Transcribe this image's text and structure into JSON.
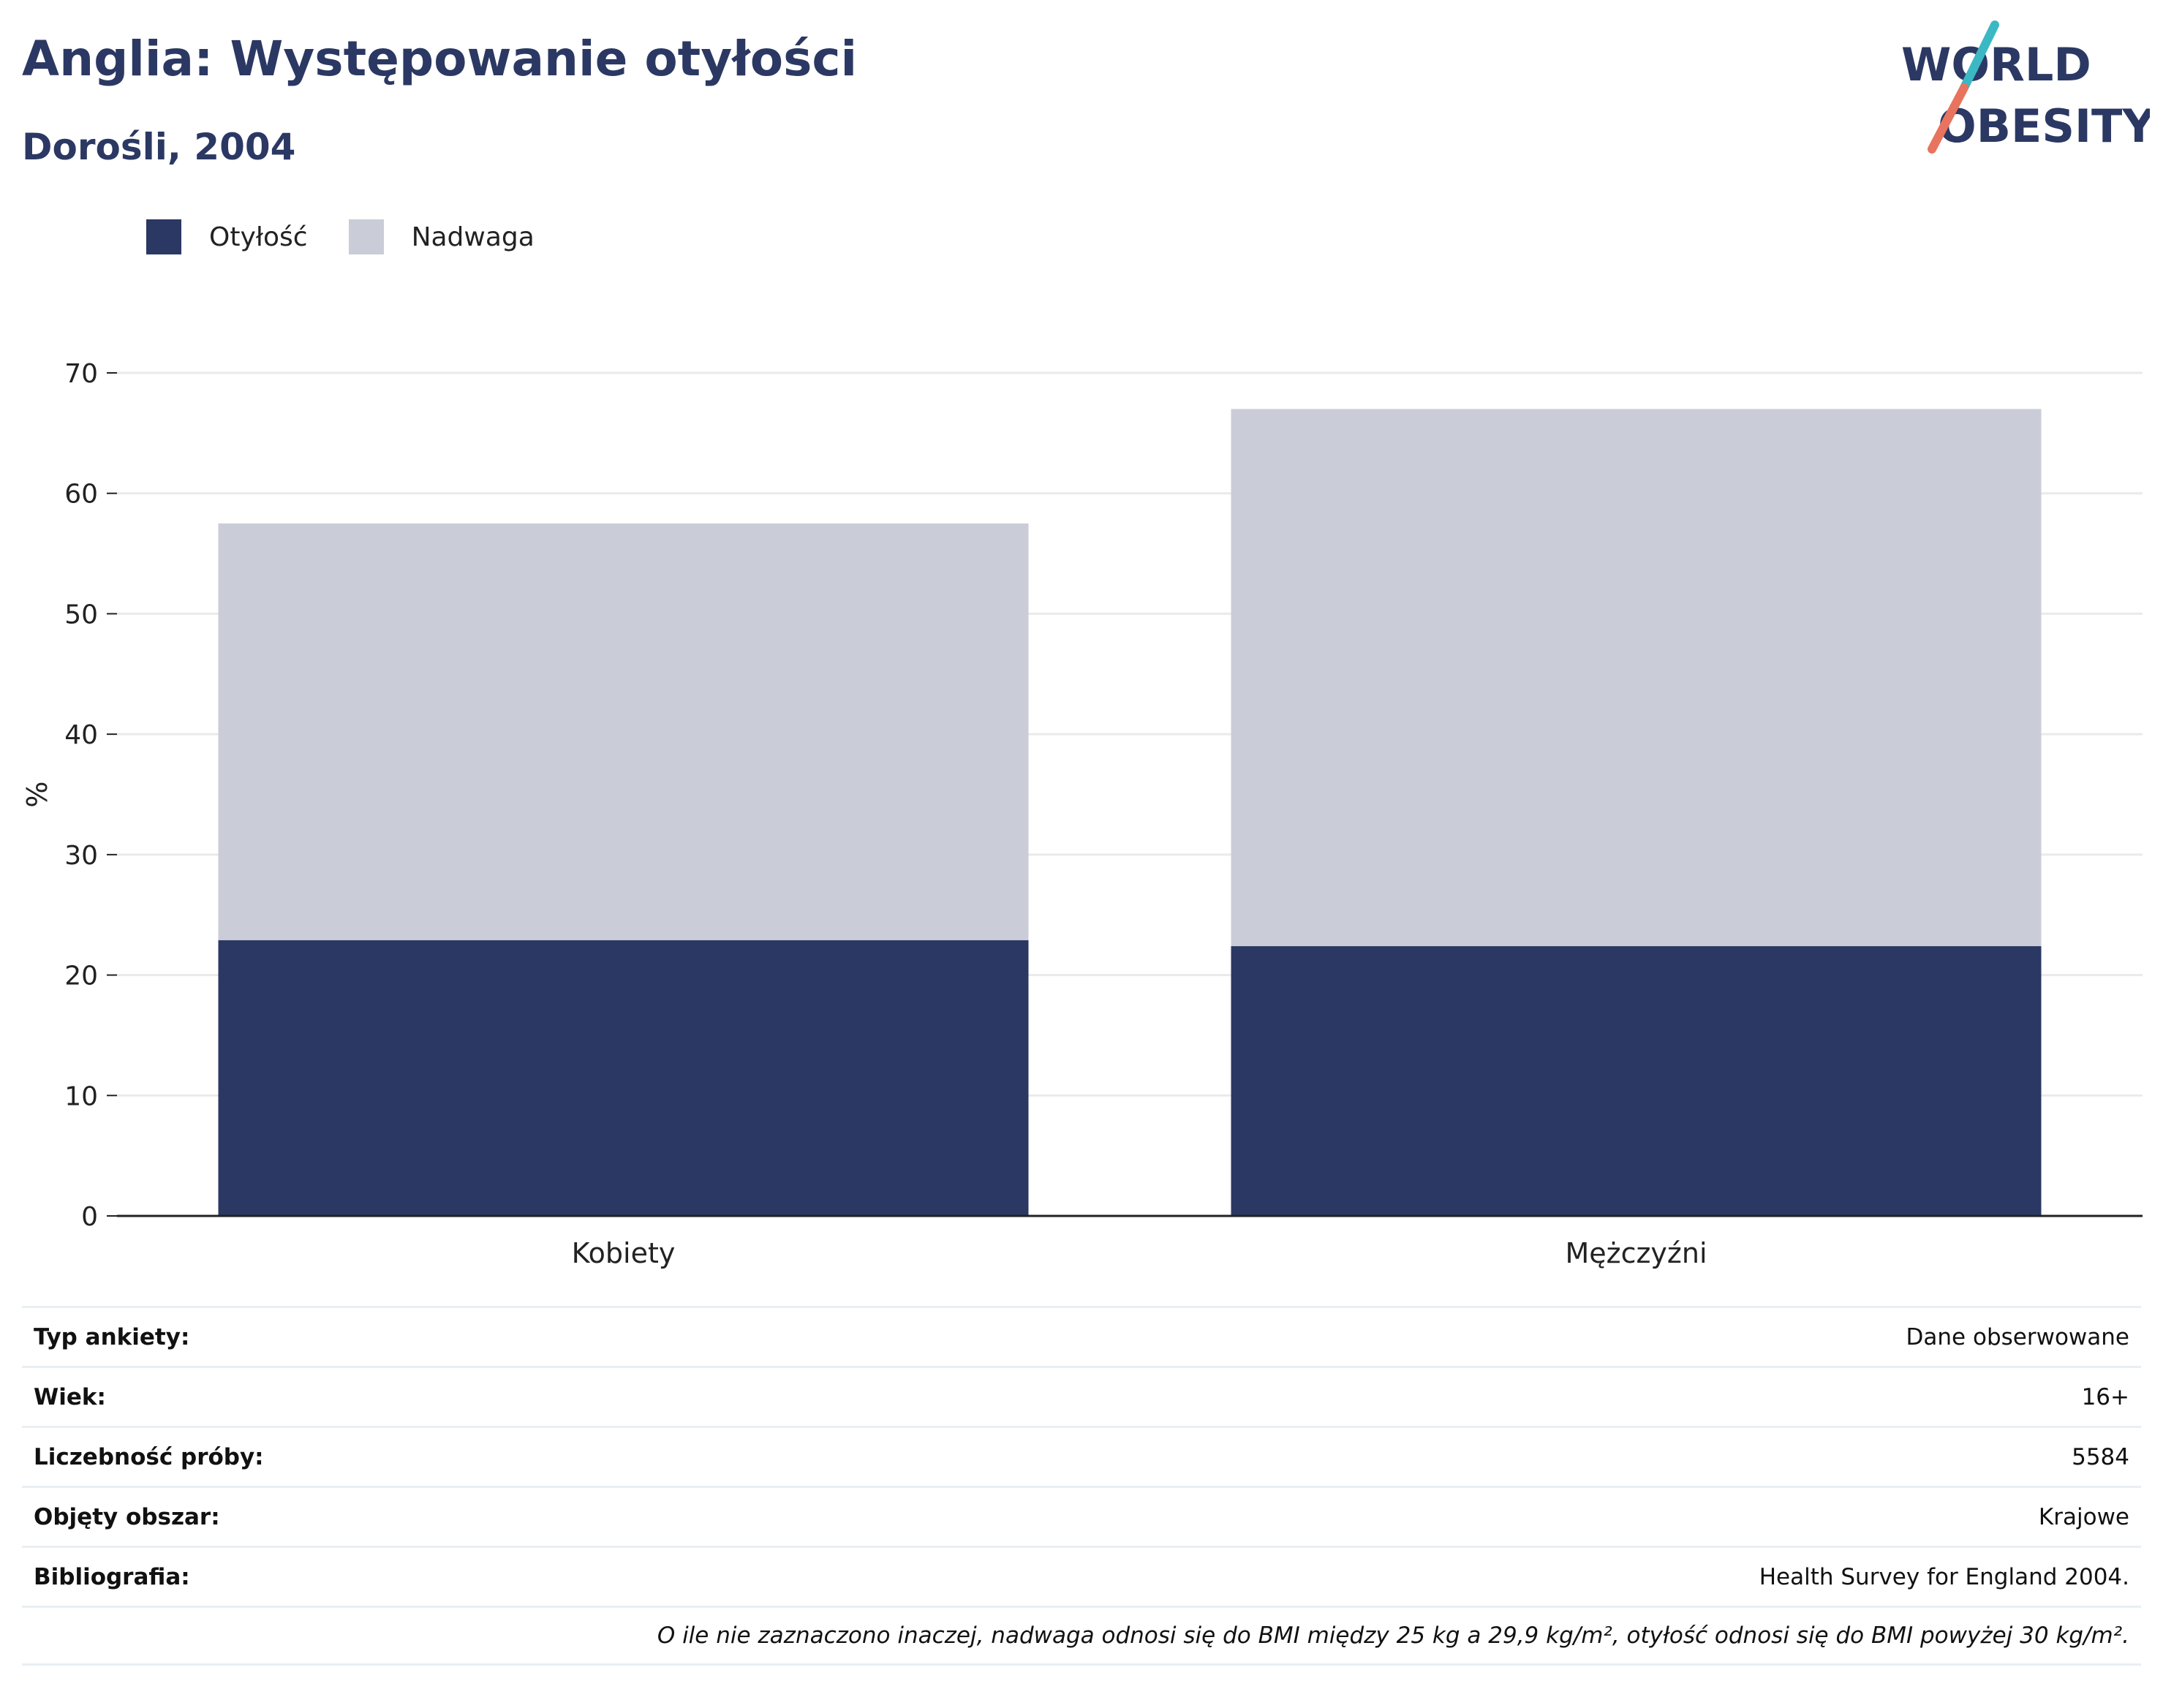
{
  "header": {
    "title": "Anglia: Występowanie otyłości",
    "subtitle": "Dorośli, 2004"
  },
  "logo": {
    "line1": "WORLD",
    "line2": "OBESITY",
    "accent_top": "#3bb8c4",
    "accent_bottom": "#e8735f"
  },
  "colors": {
    "obesity": "#2b3863",
    "overweight": "#cacdd8",
    "grid": "#eaeaea",
    "axis": "#222222"
  },
  "chart_data": {
    "type": "bar",
    "stacked": true,
    "categories": [
      "Kobiety",
      "Mężczyźni"
    ],
    "series": [
      {
        "name": "Otyłość",
        "values": [
          22.9,
          22.4
        ],
        "color": "#2b3863"
      },
      {
        "name": "Nadwaga",
        "values": [
          34.6,
          44.6
        ],
        "color": "#cacdd8"
      }
    ],
    "ylabel": "%",
    "ylim": [
      0,
      70
    ],
    "yticks": [
      0,
      10,
      20,
      30,
      40,
      50,
      60,
      70
    ],
    "grid": true,
    "legend_position": "top-left"
  },
  "info": {
    "rows": [
      {
        "label": "Typ ankiety:",
        "value": "Dane obserwowane"
      },
      {
        "label": "Wiek:",
        "value": "16+"
      },
      {
        "label": "Liczebność próby:",
        "value": "5584"
      },
      {
        "label": "Objęty obszar:",
        "value": "Krajowe"
      },
      {
        "label": "Bibliografia:",
        "value": "Health Survey for England 2004."
      }
    ],
    "note": "O ile nie zaznaczono inaczej, nadwaga odnosi się do BMI między 25 kg a 29,9 kg/m², otyłość odnosi się do BMI powyżej 30 kg/m²."
  }
}
